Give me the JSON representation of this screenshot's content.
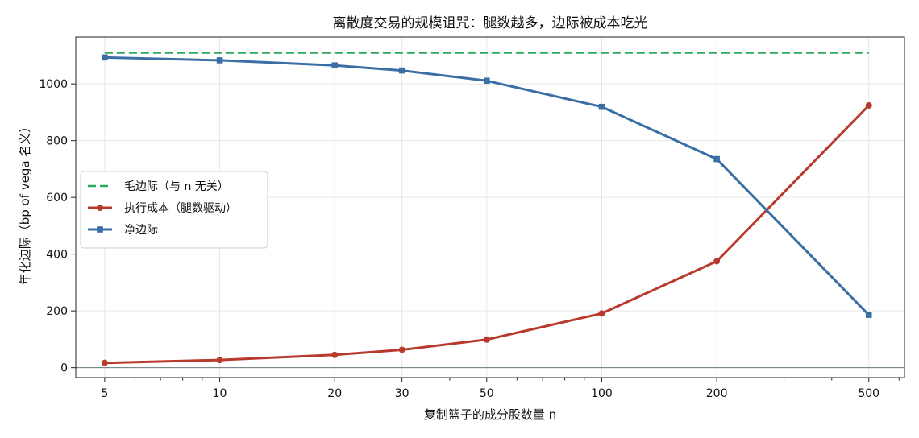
{
  "chart_data": {
    "type": "line",
    "title": "离散度交易的规模诅咒：腿数越多，边际被成本吃光",
    "xlabel": "复制篮子的成分股数量 n",
    "ylabel": "年化边际（bp of vega 名义）",
    "x_scale": "log",
    "xlim": [
      4.2,
      620
    ],
    "ylim": [
      -35,
      1165
    ],
    "x_ticks": [
      5,
      10,
      20,
      30,
      50,
      100,
      200,
      500
    ],
    "x_tick_labels": [
      "5",
      "10",
      "20",
      "30",
      "50",
      "100",
      "200",
      "500"
    ],
    "y_ticks": [
      0,
      200,
      400,
      600,
      800,
      1000
    ],
    "y_tick_labels": [
      "0",
      "200",
      "400",
      "600",
      "800",
      "1000"
    ],
    "grid": true,
    "legend_position": "center-left",
    "reference_line_y": 0,
    "x": [
      5,
      10,
      20,
      30,
      50,
      100,
      200,
      500
    ],
    "series": [
      {
        "name": "毛边际（与 n 无关）",
        "color": "#2aaa5a",
        "style": "dashed",
        "marker": "none",
        "x": [
          5,
          500
        ],
        "values": [
          1110,
          1110
        ]
      },
      {
        "name": "执行成本（腿数驱动）",
        "color": "#b83a2d",
        "style": "solid",
        "marker": "circle",
        "values": [
          17,
          27,
          45,
          63,
          99,
          191,
          375,
          924
        ]
      },
      {
        "name": "净边际",
        "color": "#3a6ea5",
        "style": "solid",
        "marker": "square",
        "values": [
          1093,
          1083,
          1065,
          1047,
          1011,
          919,
          735,
          186
        ]
      }
    ]
  }
}
